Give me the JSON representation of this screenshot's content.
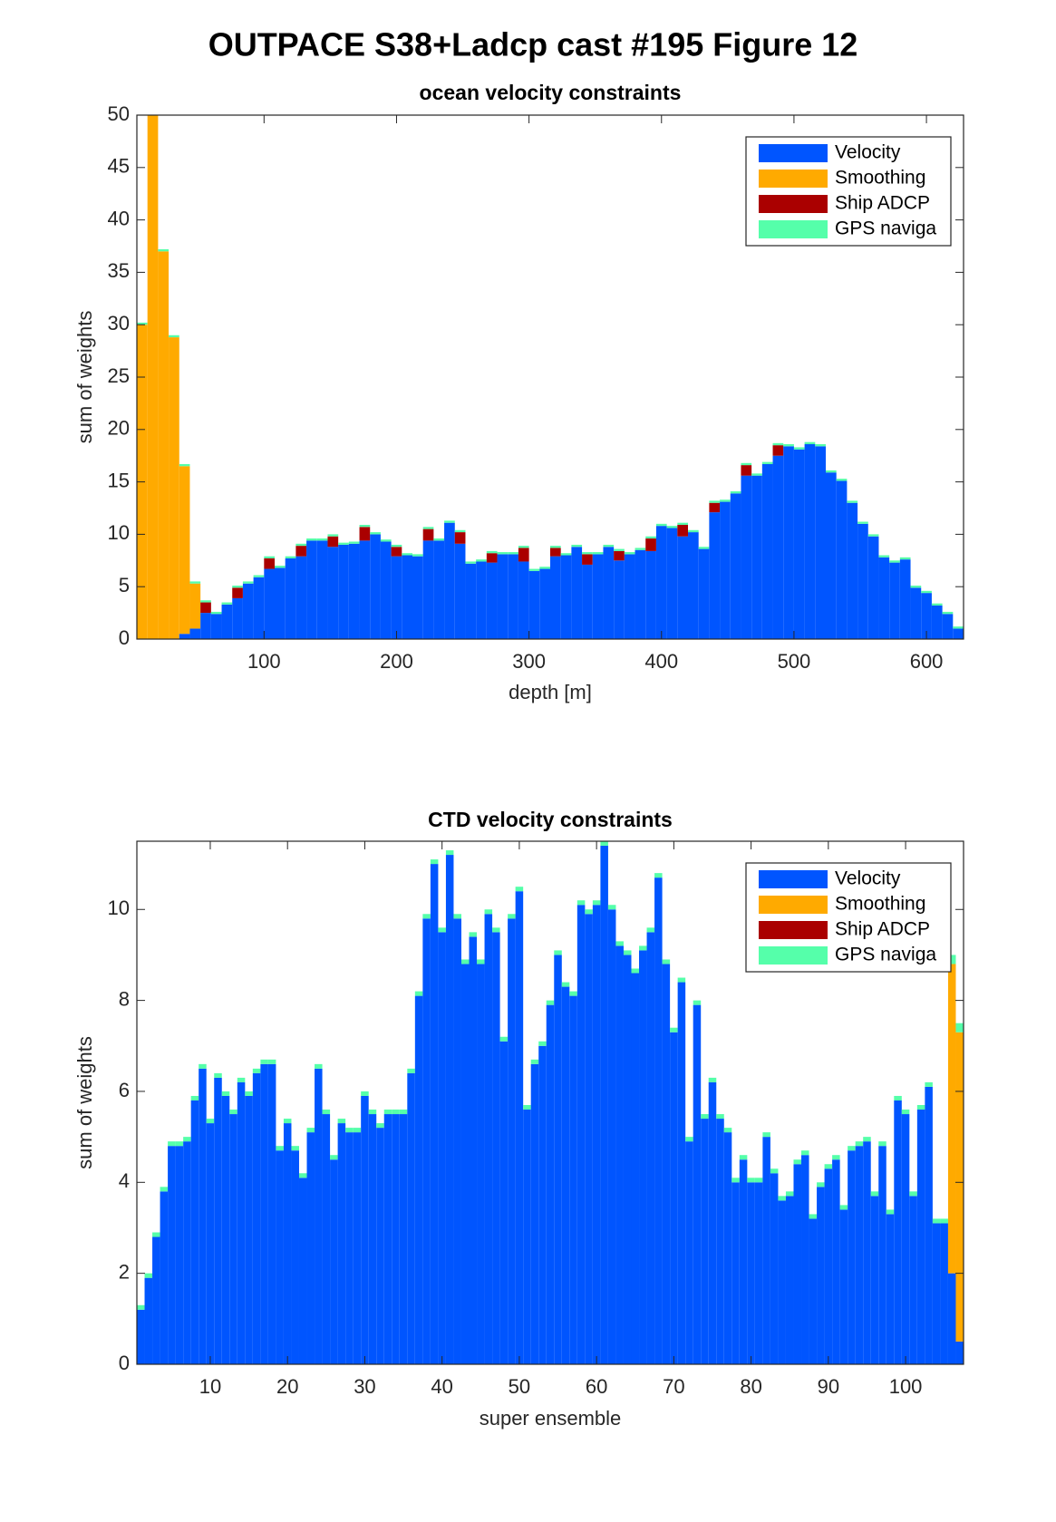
{
  "title": "OUTPACE S38+Ladcp cast #195  Figure 12",
  "chart_data": [
    {
      "type": "bar",
      "stacked": true,
      "title": "ocean velocity constraints",
      "xlabel": "depth [m]",
      "ylabel": "sum of weights",
      "x": [
        8,
        16,
        24,
        32,
        40,
        48,
        56,
        64,
        72,
        80,
        88,
        96,
        104,
        112,
        120,
        128,
        136,
        144,
        152,
        160,
        168,
        176,
        184,
        192,
        200,
        208,
        216,
        224,
        232,
        240,
        248,
        256,
        264,
        272,
        280,
        288,
        296,
        304,
        312,
        320,
        328,
        336,
        344,
        352,
        360,
        368,
        376,
        384,
        392,
        400,
        408,
        416,
        424,
        432,
        440,
        448,
        456,
        464,
        472,
        480,
        488,
        496,
        504,
        512,
        520,
        528,
        536,
        544,
        552,
        560,
        568,
        576,
        584,
        592,
        600,
        608,
        616,
        624
      ],
      "series": [
        {
          "name": "Velocity",
          "color": "#0055ff",
          "values": [
            0,
            0,
            0,
            0,
            0.5,
            1,
            2.5,
            2.4,
            3.3,
            3.9,
            5.3,
            5.9,
            6.7,
            6.8,
            7.7,
            7.9,
            9.4,
            9.4,
            8.8,
            9,
            9.1,
            9.4,
            10,
            9.3,
            7.9,
            8,
            7.9,
            9.4,
            9.4,
            11.1,
            9.1,
            7.2,
            7.4,
            7.3,
            8.1,
            8.1,
            7.4,
            6.5,
            6.7,
            7.9,
            8,
            8.8,
            7.1,
            8.1,
            8.8,
            7.5,
            8.1,
            8.5,
            8.4,
            10.8,
            10.6,
            9.8,
            10.2,
            8.6,
            12.1,
            13.1,
            13.9,
            15.6,
            15.6,
            16.7,
            17.5,
            18.4,
            18.1,
            18.6,
            18.4,
            15.9,
            15.1,
            13,
            11,
            9.8,
            7.8,
            7.3,
            7.6,
            4.9,
            4.4,
            3.2,
            2.4,
            1
          ]
        },
        {
          "name": "Smoothing",
          "color": "#ffaa00",
          "values": [
            30,
            50,
            37,
            28.8,
            16,
            4.3,
            0,
            0,
            0,
            0,
            0,
            0,
            0,
            0,
            0,
            0,
            0,
            0,
            0,
            0,
            0,
            0,
            0,
            0,
            0,
            0,
            0,
            0,
            0,
            0,
            0,
            0,
            0,
            0,
            0,
            0,
            0,
            0,
            0,
            0,
            0,
            0,
            0,
            0,
            0,
            0,
            0,
            0,
            0,
            0,
            0,
            0,
            0,
            0,
            0,
            0,
            0,
            0,
            0,
            0,
            0,
            0,
            0,
            0,
            0,
            0,
            0,
            0,
            0,
            0,
            0,
            0,
            0,
            0,
            0,
            0,
            0,
            0
          ]
        },
        {
          "name": "Ship ADCP",
          "color": "#aa0000",
          "values": [
            0,
            0,
            0,
            0,
            0,
            0,
            1,
            0,
            0,
            1,
            0,
            0,
            1,
            0,
            0,
            1,
            0,
            0,
            1,
            0,
            0,
            1.3,
            0,
            0,
            0.9,
            0,
            0,
            1.1,
            0,
            0,
            1.1,
            0,
            0,
            0.9,
            0,
            0,
            1.3,
            0,
            0,
            0.8,
            0,
            0,
            1,
            0,
            0,
            0.9,
            0,
            0,
            1.2,
            0,
            0,
            1.1,
            0,
            0,
            0.9,
            0,
            0,
            1,
            0,
            0,
            1,
            0,
            0,
            0,
            0,
            0,
            0,
            0,
            0,
            0,
            0,
            0,
            0,
            0,
            0,
            0,
            0,
            0
          ]
        },
        {
          "name": "GPS naviga",
          "color": "#55ffaa",
          "values": [
            0.2,
            0.2,
            0.2,
            0.2,
            0.2,
            0.2,
            0.2,
            0.2,
            0.2,
            0.2,
            0.2,
            0.2,
            0.2,
            0.2,
            0.2,
            0.2,
            0.2,
            0.2,
            0.2,
            0.2,
            0.2,
            0.2,
            0.2,
            0.2,
            0.2,
            0.2,
            0.2,
            0.2,
            0.2,
            0.2,
            0.2,
            0.2,
            0.2,
            0.2,
            0.2,
            0.2,
            0.2,
            0.2,
            0.2,
            0.2,
            0.2,
            0.2,
            0.2,
            0.2,
            0.2,
            0.2,
            0.2,
            0.2,
            0.2,
            0.2,
            0.2,
            0.2,
            0.2,
            0.2,
            0.2,
            0.2,
            0.2,
            0.2,
            0.2,
            0.2,
            0.2,
            0.2,
            0.2,
            0.2,
            0.2,
            0.2,
            0.2,
            0.2,
            0.2,
            0.2,
            0.2,
            0.2,
            0.2,
            0.2,
            0.2,
            0.2,
            0.2,
            0.2
          ]
        }
      ],
      "xlim": [
        4,
        628
      ],
      "xticks": [
        100,
        200,
        300,
        400,
        500,
        600
      ],
      "ylim": [
        0,
        50
      ],
      "yticks": [
        0,
        5,
        10,
        15,
        20,
        25,
        30,
        35,
        40,
        45,
        50
      ],
      "legend": "northeast",
      "grid": false
    },
    {
      "type": "bar",
      "stacked": true,
      "title": "CTD velocity constraints",
      "xlabel": "super ensemble",
      "ylabel": "sum of weights",
      "x": [
        1,
        2,
        3,
        4,
        5,
        6,
        7,
        8,
        9,
        10,
        11,
        12,
        13,
        14,
        15,
        16,
        17,
        18,
        19,
        20,
        21,
        22,
        23,
        24,
        25,
        26,
        27,
        28,
        29,
        30,
        31,
        32,
        33,
        34,
        35,
        36,
        37,
        38,
        39,
        40,
        41,
        42,
        43,
        44,
        45,
        46,
        47,
        48,
        49,
        50,
        51,
        52,
        53,
        54,
        55,
        56,
        57,
        58,
        59,
        60,
        61,
        62,
        63,
        64,
        65,
        66,
        67,
        68,
        69,
        70,
        71,
        72,
        73,
        74,
        75,
        76,
        77,
        78,
        79,
        80,
        81,
        82,
        83,
        84,
        85,
        86,
        87,
        88,
        89,
        90,
        91,
        92,
        93,
        94,
        95,
        96,
        97,
        98,
        99,
        100,
        101,
        102,
        103,
        104,
        105,
        106,
        107
      ],
      "series": [
        {
          "name": "Velocity",
          "color": "#0055ff",
          "values": [
            1.2,
            1.9,
            2.8,
            3.8,
            4.8,
            4.8,
            4.9,
            5.8,
            6.5,
            5.3,
            6.3,
            5.9,
            5.5,
            6.2,
            5.9,
            6.4,
            6.6,
            6.6,
            4.7,
            5.3,
            4.7,
            4.1,
            5.1,
            6.5,
            5.5,
            4.5,
            5.3,
            5.1,
            5.1,
            5.9,
            5.5,
            5.2,
            5.5,
            5.5,
            5.5,
            6.4,
            8.1,
            9.8,
            11,
            9.5,
            11.2,
            9.8,
            8.8,
            9.4,
            8.8,
            9.9,
            9.5,
            7.1,
            9.8,
            10.4,
            5.6,
            6.6,
            7,
            7.9,
            9,
            8.3,
            8.1,
            10.1,
            9.9,
            10.1,
            11.4,
            10,
            9.2,
            9,
            8.6,
            9.1,
            9.5,
            10.7,
            8.8,
            7.3,
            8.4,
            4.9,
            7.9,
            5.4,
            6.2,
            5.4,
            5.1,
            4,
            4.5,
            4,
            4,
            5,
            4.2,
            3.6,
            3.7,
            4.4,
            4.6,
            3.2,
            3.9,
            4.3,
            4.5,
            3.4,
            4.7,
            4.8,
            4.9,
            3.7,
            4.8,
            3.3,
            5.8,
            5.5,
            3.7,
            5.6,
            6.1,
            3.1,
            3.1,
            2,
            0.5
          ]
        },
        {
          "name": "Smoothing",
          "color": "#ffaa00",
          "values": [
            0,
            0,
            0,
            0,
            0,
            0,
            0,
            0,
            0,
            0,
            0,
            0,
            0,
            0,
            0,
            0,
            0,
            0,
            0,
            0,
            0,
            0,
            0,
            0,
            0,
            0,
            0,
            0,
            0,
            0,
            0,
            0,
            0,
            0,
            0,
            0,
            0,
            0,
            0,
            0,
            0,
            0,
            0,
            0,
            0,
            0,
            0,
            0,
            0,
            0,
            0,
            0,
            0,
            0,
            0,
            0,
            0,
            0,
            0,
            0,
            0,
            0,
            0,
            0,
            0,
            0,
            0,
            0,
            0,
            0,
            0,
            0,
            0,
            0,
            0,
            0,
            0,
            0,
            0,
            0,
            0,
            0,
            0,
            0,
            0,
            0,
            0,
            0,
            0,
            0,
            0,
            0,
            0,
            0,
            0,
            0,
            0,
            0,
            0,
            0,
            0,
            0,
            0,
            0,
            0,
            6.8,
            6.8
          ]
        },
        {
          "name": "Ship ADCP",
          "color": "#aa0000",
          "values": [
            0,
            0,
            0,
            0,
            0,
            0,
            0,
            0,
            0,
            0,
            0,
            0,
            0,
            0,
            0,
            0,
            0,
            0,
            0,
            0,
            0,
            0,
            0,
            0,
            0,
            0,
            0,
            0,
            0,
            0,
            0,
            0,
            0,
            0,
            0,
            0,
            0,
            0,
            0,
            0,
            0,
            0,
            0,
            0,
            0,
            0,
            0,
            0,
            0,
            0,
            0,
            0,
            0,
            0,
            0,
            0,
            0,
            0,
            0,
            0,
            0,
            0,
            0,
            0,
            0,
            0,
            0,
            0,
            0,
            0,
            0,
            0,
            0,
            0,
            0,
            0,
            0,
            0,
            0,
            0,
            0,
            0,
            0,
            0,
            0,
            0,
            0,
            0,
            0,
            0,
            0,
            0,
            0,
            0,
            0,
            0,
            0,
            0,
            0,
            0,
            0,
            0,
            0,
            0,
            0,
            0,
            0
          ]
        },
        {
          "name": "GPS naviga",
          "color": "#55ffaa",
          "values": [
            0.1,
            0.1,
            0.1,
            0.1,
            0.1,
            0.1,
            0.1,
            0.1,
            0.1,
            0.1,
            0.1,
            0.1,
            0.1,
            0.1,
            0.1,
            0.1,
            0.1,
            0.1,
            0.1,
            0.1,
            0.1,
            0.1,
            0.1,
            0.1,
            0.1,
            0.1,
            0.1,
            0.1,
            0.1,
            0.1,
            0.1,
            0.1,
            0.1,
            0.1,
            0.1,
            0.1,
            0.1,
            0.1,
            0.1,
            0.1,
            0.1,
            0.1,
            0.1,
            0.1,
            0.1,
            0.1,
            0.1,
            0.1,
            0.1,
            0.1,
            0.1,
            0.1,
            0.1,
            0.1,
            0.1,
            0.1,
            0.1,
            0.1,
            0.1,
            0.1,
            0.1,
            0.1,
            0.1,
            0.1,
            0.1,
            0.1,
            0.1,
            0.1,
            0.1,
            0.1,
            0.1,
            0.1,
            0.1,
            0.1,
            0.1,
            0.1,
            0.1,
            0.1,
            0.1,
            0.1,
            0.1,
            0.1,
            0.1,
            0.1,
            0.1,
            0.1,
            0.1,
            0.1,
            0.1,
            0.1,
            0.1,
            0.1,
            0.1,
            0.1,
            0.1,
            0.1,
            0.1,
            0.1,
            0.1,
            0.1,
            0.1,
            0.1,
            0.1,
            0.1,
            0.1,
            0.2,
            0.2
          ]
        }
      ],
      "xlim": [
        0.5,
        107.5
      ],
      "xticks": [
        10,
        20,
        30,
        40,
        50,
        60,
        70,
        80,
        90,
        100
      ],
      "ylim": [
        0,
        11.5
      ],
      "yticks": [
        0,
        2,
        4,
        6,
        8,
        10
      ],
      "legend": "northeast",
      "grid": false
    }
  ]
}
